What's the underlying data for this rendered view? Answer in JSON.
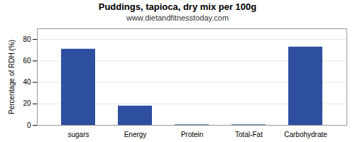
{
  "chart_data": {
    "type": "bar",
    "title": "Puddings, tapioca, dry mix per 100g",
    "subtitle": "www.dietandfitnesstoday.com",
    "categories": [
      "sugars",
      "Energy",
      "Protein",
      "Total-Fat",
      "Carbohydrate"
    ],
    "values": [
      71,
      18,
      0.5,
      0.5,
      73
    ],
    "color": "#2e4ea0",
    "ylabel": "Percentage of RDH (%)",
    "ylim": [
      0,
      90
    ],
    "yticks": [
      0,
      20,
      40,
      60,
      80
    ],
    "grid": true
  }
}
